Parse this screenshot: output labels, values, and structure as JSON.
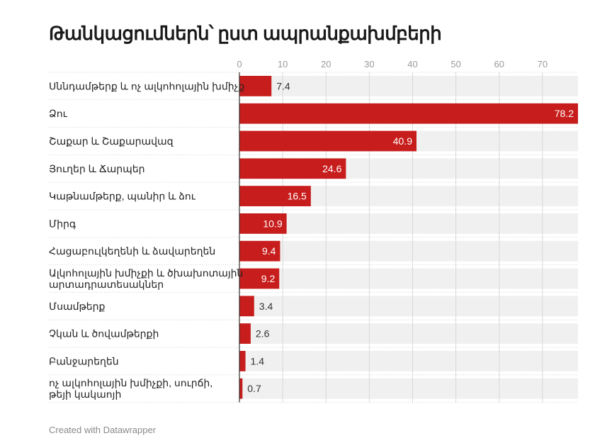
{
  "chart_data": {
    "type": "bar",
    "orientation": "horizontal",
    "title": "Թանկացումներն՝ ըստ ապրանքախմբերի",
    "categories": [
      "Սննդամթերք և ոչ ալկոհոլային խմիչք",
      "Ձու",
      "Շաքար և Շաքարավազ",
      "Յուղեր և Ճարպեր",
      "Կաթնամթերք, պանիր և ձու",
      "Միրգ",
      "Հացաբուլկեղենի և ձավարեղեն",
      "Ալկոհոլային խմիչքի և ծխախոտային արտադրատեսակներ",
      "Մսամթերք",
      "Չկան և ծովամթերքի",
      "Բանջարեղեն",
      "ոչ ալկոհոլային խմիչքի, սուրճի, թեյի կակաոյի"
    ],
    "values": [
      7.4,
      78.2,
      40.9,
      24.6,
      16.5,
      10.9,
      9.4,
      9.2,
      3.4,
      2.6,
      1.4,
      0.7
    ],
    "xlim": [
      0,
      78.2
    ],
    "xticks": [
      0,
      10,
      20,
      30,
      40,
      50,
      60,
      70
    ],
    "tick_position": "top",
    "grid": true,
    "bar_color": "#c71e1d",
    "track_color": "#f0f0f0"
  },
  "footer": "Created with Datawrapper"
}
